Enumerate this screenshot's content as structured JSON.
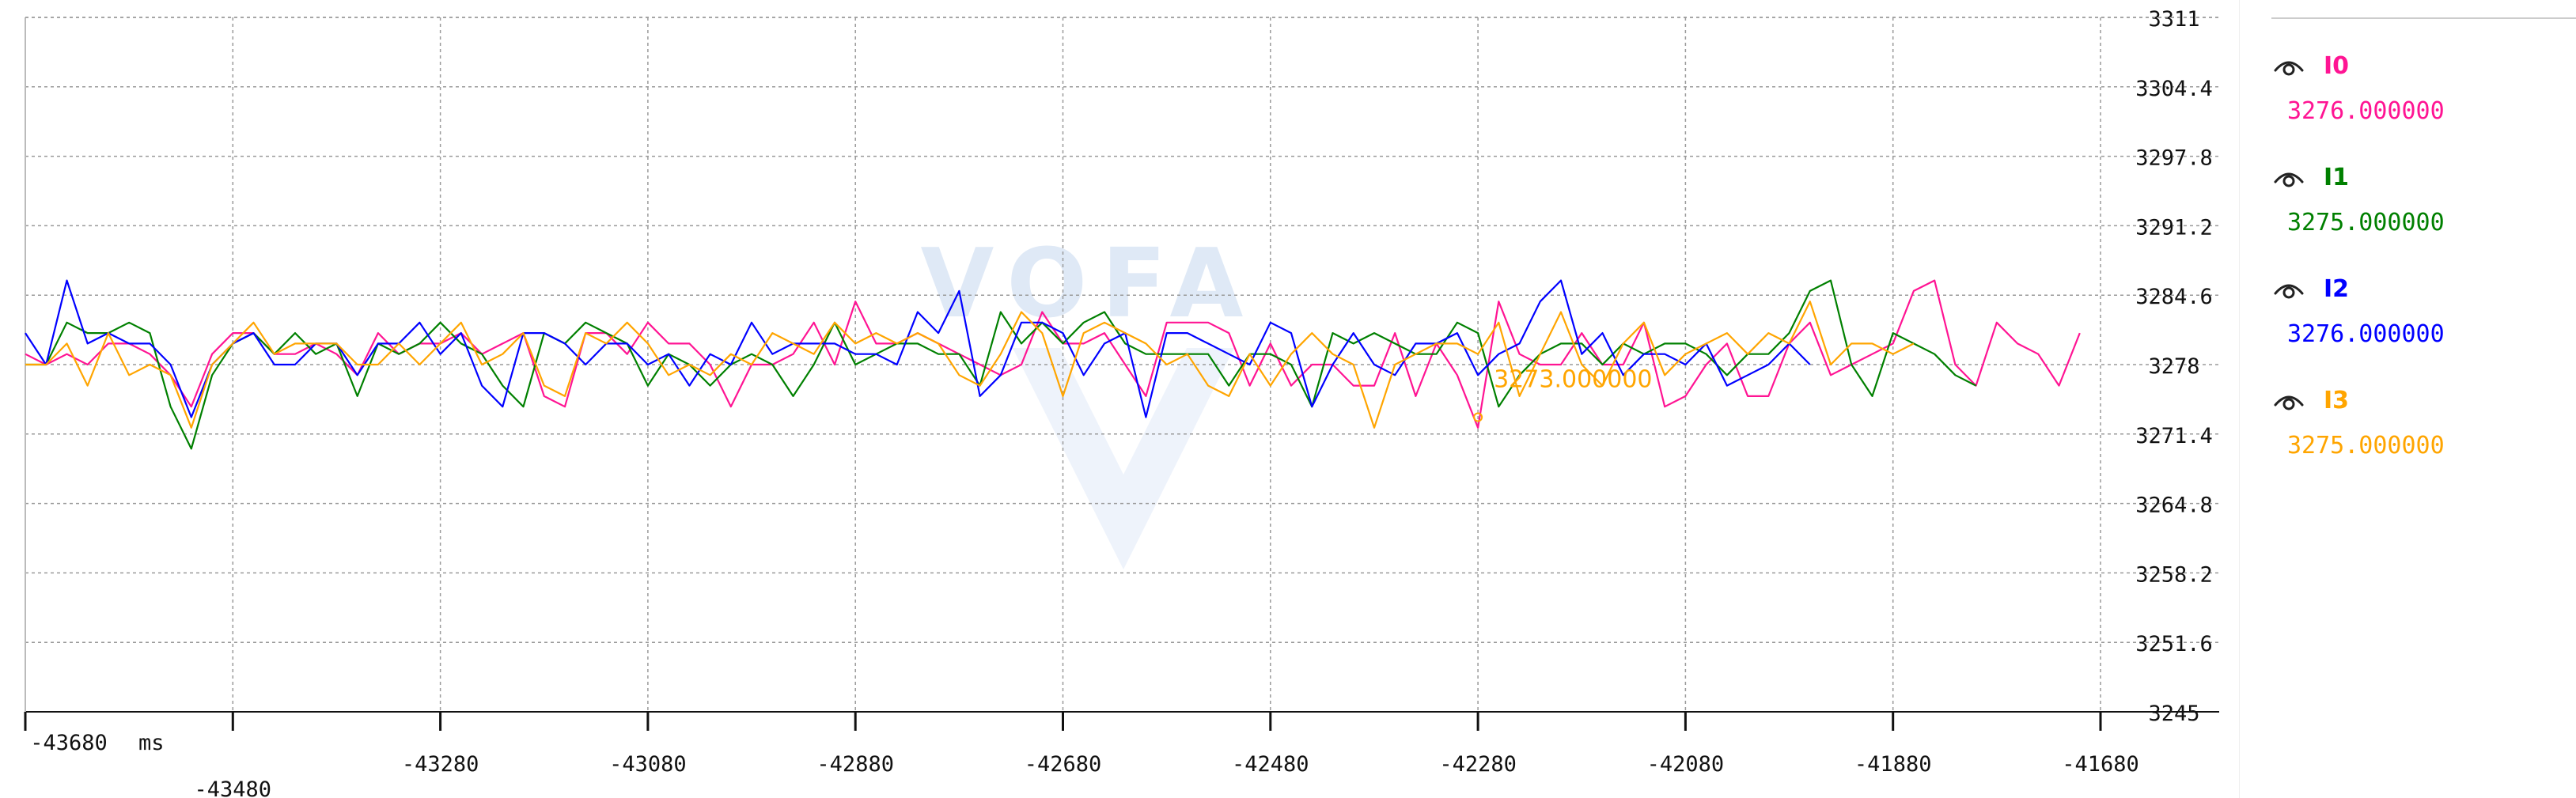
{
  "watermark": "VOFA",
  "x_unit": "ms",
  "hover_label": "3273.000000",
  "channels": [
    {
      "name": "I0",
      "value": "3276.000000",
      "color": "#ff1493",
      "icon": "eye-icon"
    },
    {
      "name": "I1",
      "value": "3275.000000",
      "color": "#008000",
      "icon": "eye-icon"
    },
    {
      "name": "I2",
      "value": "3276.000000",
      "color": "#0000ff",
      "icon": "eye-icon"
    },
    {
      "name": "I3",
      "value": "3275.000000",
      "color": "#ffa500",
      "icon": "eye-icon"
    }
  ],
  "chart_data": {
    "type": "line",
    "xlabel": "ms",
    "ylabel": "",
    "xlim": [
      -43680,
      -41680
    ],
    "ylim": [
      3245,
      3311
    ],
    "x_ticks": [
      -43680,
      -43480,
      -43280,
      -43080,
      -42880,
      -42680,
      -42480,
      -42280,
      -42080,
      -41880,
      -41680
    ],
    "y_ticks": [
      3311,
      3304.4,
      3297.8,
      3291.2,
      3284.6,
      3278,
      3271.4,
      3264.8,
      3258.2,
      3251.6,
      3245
    ],
    "y_tick_labels": [
      "3311",
      "3304.4",
      "3297.8",
      "3291.2",
      "3284.6",
      "3278",
      "3271.4",
      "3264.8",
      "3258.2",
      "3251.6",
      "3245"
    ],
    "grid": true,
    "sample_interval_ms": 20,
    "x_start": -43680,
    "hover": {
      "x": -42280,
      "y": 3273,
      "series": "I3"
    },
    "series": [
      {
        "name": "I0",
        "color": "#ff1493",
        "values": [
          3279,
          3278,
          3279,
          3278,
          3280,
          3280,
          3279,
          3277,
          3274,
          3279,
          3281,
          3281,
          3279,
          3279,
          3280,
          3279,
          3277,
          3281,
          3279,
          3280,
          3280,
          3281,
          3279,
          3280,
          3281,
          3275,
          3274,
          3281,
          3281,
          3279,
          3282,
          3280,
          3280,
          3278,
          3274,
          3278,
          3278,
          3279,
          3282,
          3278,
          3284,
          3280,
          3280,
          3281,
          3280,
          3279,
          3278,
          3277,
          3278,
          3283,
          3280,
          3280,
          3281,
          3278,
          3275,
          3282,
          3282,
          3282,
          3281,
          3276,
          3280,
          3276,
          3278,
          3278,
          3276,
          3276,
          3281,
          3275,
          3280,
          3277,
          3272,
          3284,
          3279,
          3278,
          3278,
          3281,
          3278,
          3278,
          3282,
          3274,
          3275,
          3278,
          3280,
          3275,
          3275,
          3280,
          3282,
          3277,
          3278,
          3279,
          3280,
          3285,
          3286,
          3278,
          3276,
          3282,
          3280,
          3279,
          3276,
          3281
        ]
      },
      {
        "name": "I1",
        "color": "#008000",
        "values": [
          3278,
          3278,
          3282,
          3281,
          3281,
          3282,
          3281,
          3274,
          3270,
          3277,
          3280,
          3281,
          3279,
          3281,
          3279,
          3280,
          3275,
          3280,
          3279,
          3280,
          3282,
          3280,
          3279,
          3276,
          3274,
          3281,
          3280,
          3282,
          3281,
          3280,
          3276,
          3279,
          3278,
          3276,
          3278,
          3279,
          3278,
          3275,
          3278,
          3282,
          3278,
          3279,
          3280,
          3280,
          3279,
          3279,
          3276,
          3283,
          3280,
          3282,
          3280,
          3282,
          3283,
          3280,
          3279,
          3279,
          3279,
          3279,
          3276,
          3279,
          3279,
          3278,
          3274,
          3281,
          3280,
          3281,
          3280,
          3279,
          3279,
          3282,
          3281,
          3274,
          3277,
          3279,
          3280,
          3280,
          3278,
          3280,
          3279,
          3280,
          3280,
          3279,
          3277,
          3279,
          3279,
          3281,
          3285,
          3286,
          3278,
          3275,
          3281,
          3280,
          3279,
          3277,
          3276
        ]
      },
      {
        "name": "I2",
        "color": "#0000ff",
        "values": [
          3281,
          3278,
          3286,
          3280,
          3281,
          3280,
          3280,
          3278,
          3273,
          3278,
          3280,
          3281,
          3278,
          3278,
          3280,
          3280,
          3277,
          3280,
          3280,
          3282,
          3279,
          3281,
          3276,
          3274,
          3281,
          3281,
          3280,
          3278,
          3280,
          3280,
          3278,
          3279,
          3276,
          3279,
          3278,
          3282,
          3279,
          3280,
          3280,
          3280,
          3279,
          3279,
          3278,
          3283,
          3281,
          3285,
          3275,
          3277,
          3282,
          3282,
          3281,
          3277,
          3280,
          3281,
          3273,
          3281,
          3281,
          3280,
          3279,
          3278,
          3282,
          3281,
          3274,
          3278,
          3281,
          3278,
          3277,
          3280,
          3280,
          3281,
          3277,
          3279,
          3280,
          3284,
          3286,
          3279,
          3281,
          3277,
          3279,
          3279,
          3278,
          3280,
          3276,
          3277,
          3278,
          3280,
          3278
        ]
      },
      {
        "name": "I3",
        "color": "#ffa500",
        "values": [
          3278,
          3278,
          3280,
          3276,
          3281,
          3277,
          3278,
          3277,
          3272,
          3278,
          3280,
          3282,
          3279,
          3280,
          3280,
          3280,
          3278,
          3278,
          3280,
          3278,
          3280,
          3282,
          3278,
          3279,
          3281,
          3276,
          3275,
          3281,
          3280,
          3282,
          3280,
          3277,
          3278,
          3277,
          3279,
          3278,
          3281,
          3280,
          3279,
          3282,
          3280,
          3281,
          3280,
          3281,
          3280,
          3277,
          3276,
          3279,
          3283,
          3281,
          3275,
          3281,
          3282,
          3281,
          3280,
          3278,
          3279,
          3276,
          3275,
          3279,
          3276,
          3279,
          3281,
          3279,
          3278,
          3272,
          3278,
          3279,
          3280,
          3280,
          3279,
          3282,
          3275,
          3279,
          3283,
          3278,
          3276,
          3280,
          3282,
          3277,
          3279,
          3280,
          3281,
          3279,
          3281,
          3280,
          3284,
          3278,
          3280,
          3280,
          3279,
          3280
        ]
      }
    ]
  }
}
